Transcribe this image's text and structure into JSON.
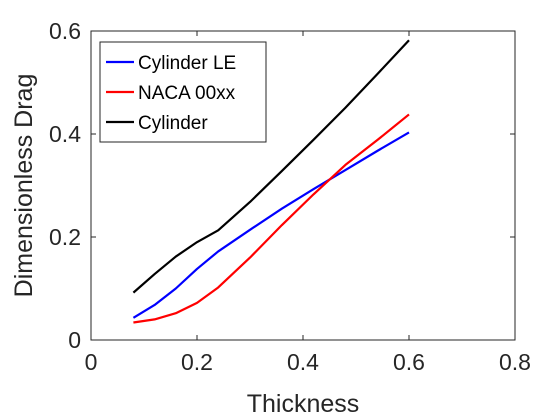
{
  "chart_data": {
    "type": "line",
    "xlabel": "Thickness",
    "ylabel": "Dimensionless Drag",
    "xlim": [
      0,
      0.8
    ],
    "ylim": [
      0,
      0.6
    ],
    "xticks": [
      0,
      0.2,
      0.4,
      0.6,
      0.8
    ],
    "yticks": [
      0,
      0.2,
      0.4,
      0.6
    ],
    "xtick_labels": [
      "0",
      "0.2",
      "0.4",
      "0.6",
      "0.8"
    ],
    "ytick_labels": [
      "0",
      "0.2",
      "0.4",
      "0.6"
    ],
    "grid": false,
    "legend_position": "top-left",
    "series": [
      {
        "name": "Cylinder LE",
        "color": "#0000ff",
        "x": [
          0.08,
          0.12,
          0.16,
          0.2,
          0.24,
          0.3,
          0.36,
          0.42,
          0.48,
          0.54,
          0.6
        ],
        "y": [
          0.043,
          0.068,
          0.1,
          0.138,
          0.172,
          0.214,
          0.255,
          0.293,
          0.33,
          0.367,
          0.403
        ]
      },
      {
        "name": "NACA 00xx",
        "color": "#ff0000",
        "x": [
          0.08,
          0.12,
          0.16,
          0.2,
          0.24,
          0.3,
          0.36,
          0.42,
          0.48,
          0.54,
          0.6
        ],
        "y": [
          0.034,
          0.04,
          0.052,
          0.072,
          0.102,
          0.16,
          0.223,
          0.283,
          0.34,
          0.388,
          0.438
        ]
      },
      {
        "name": "Cylinder",
        "color": "#000000",
        "x": [
          0.08,
          0.12,
          0.16,
          0.2,
          0.24,
          0.3,
          0.36,
          0.42,
          0.48,
          0.54,
          0.6
        ],
        "y": [
          0.092,
          0.128,
          0.162,
          0.19,
          0.213,
          0.268,
          0.328,
          0.389,
          0.451,
          0.516,
          0.582
        ]
      }
    ]
  }
}
